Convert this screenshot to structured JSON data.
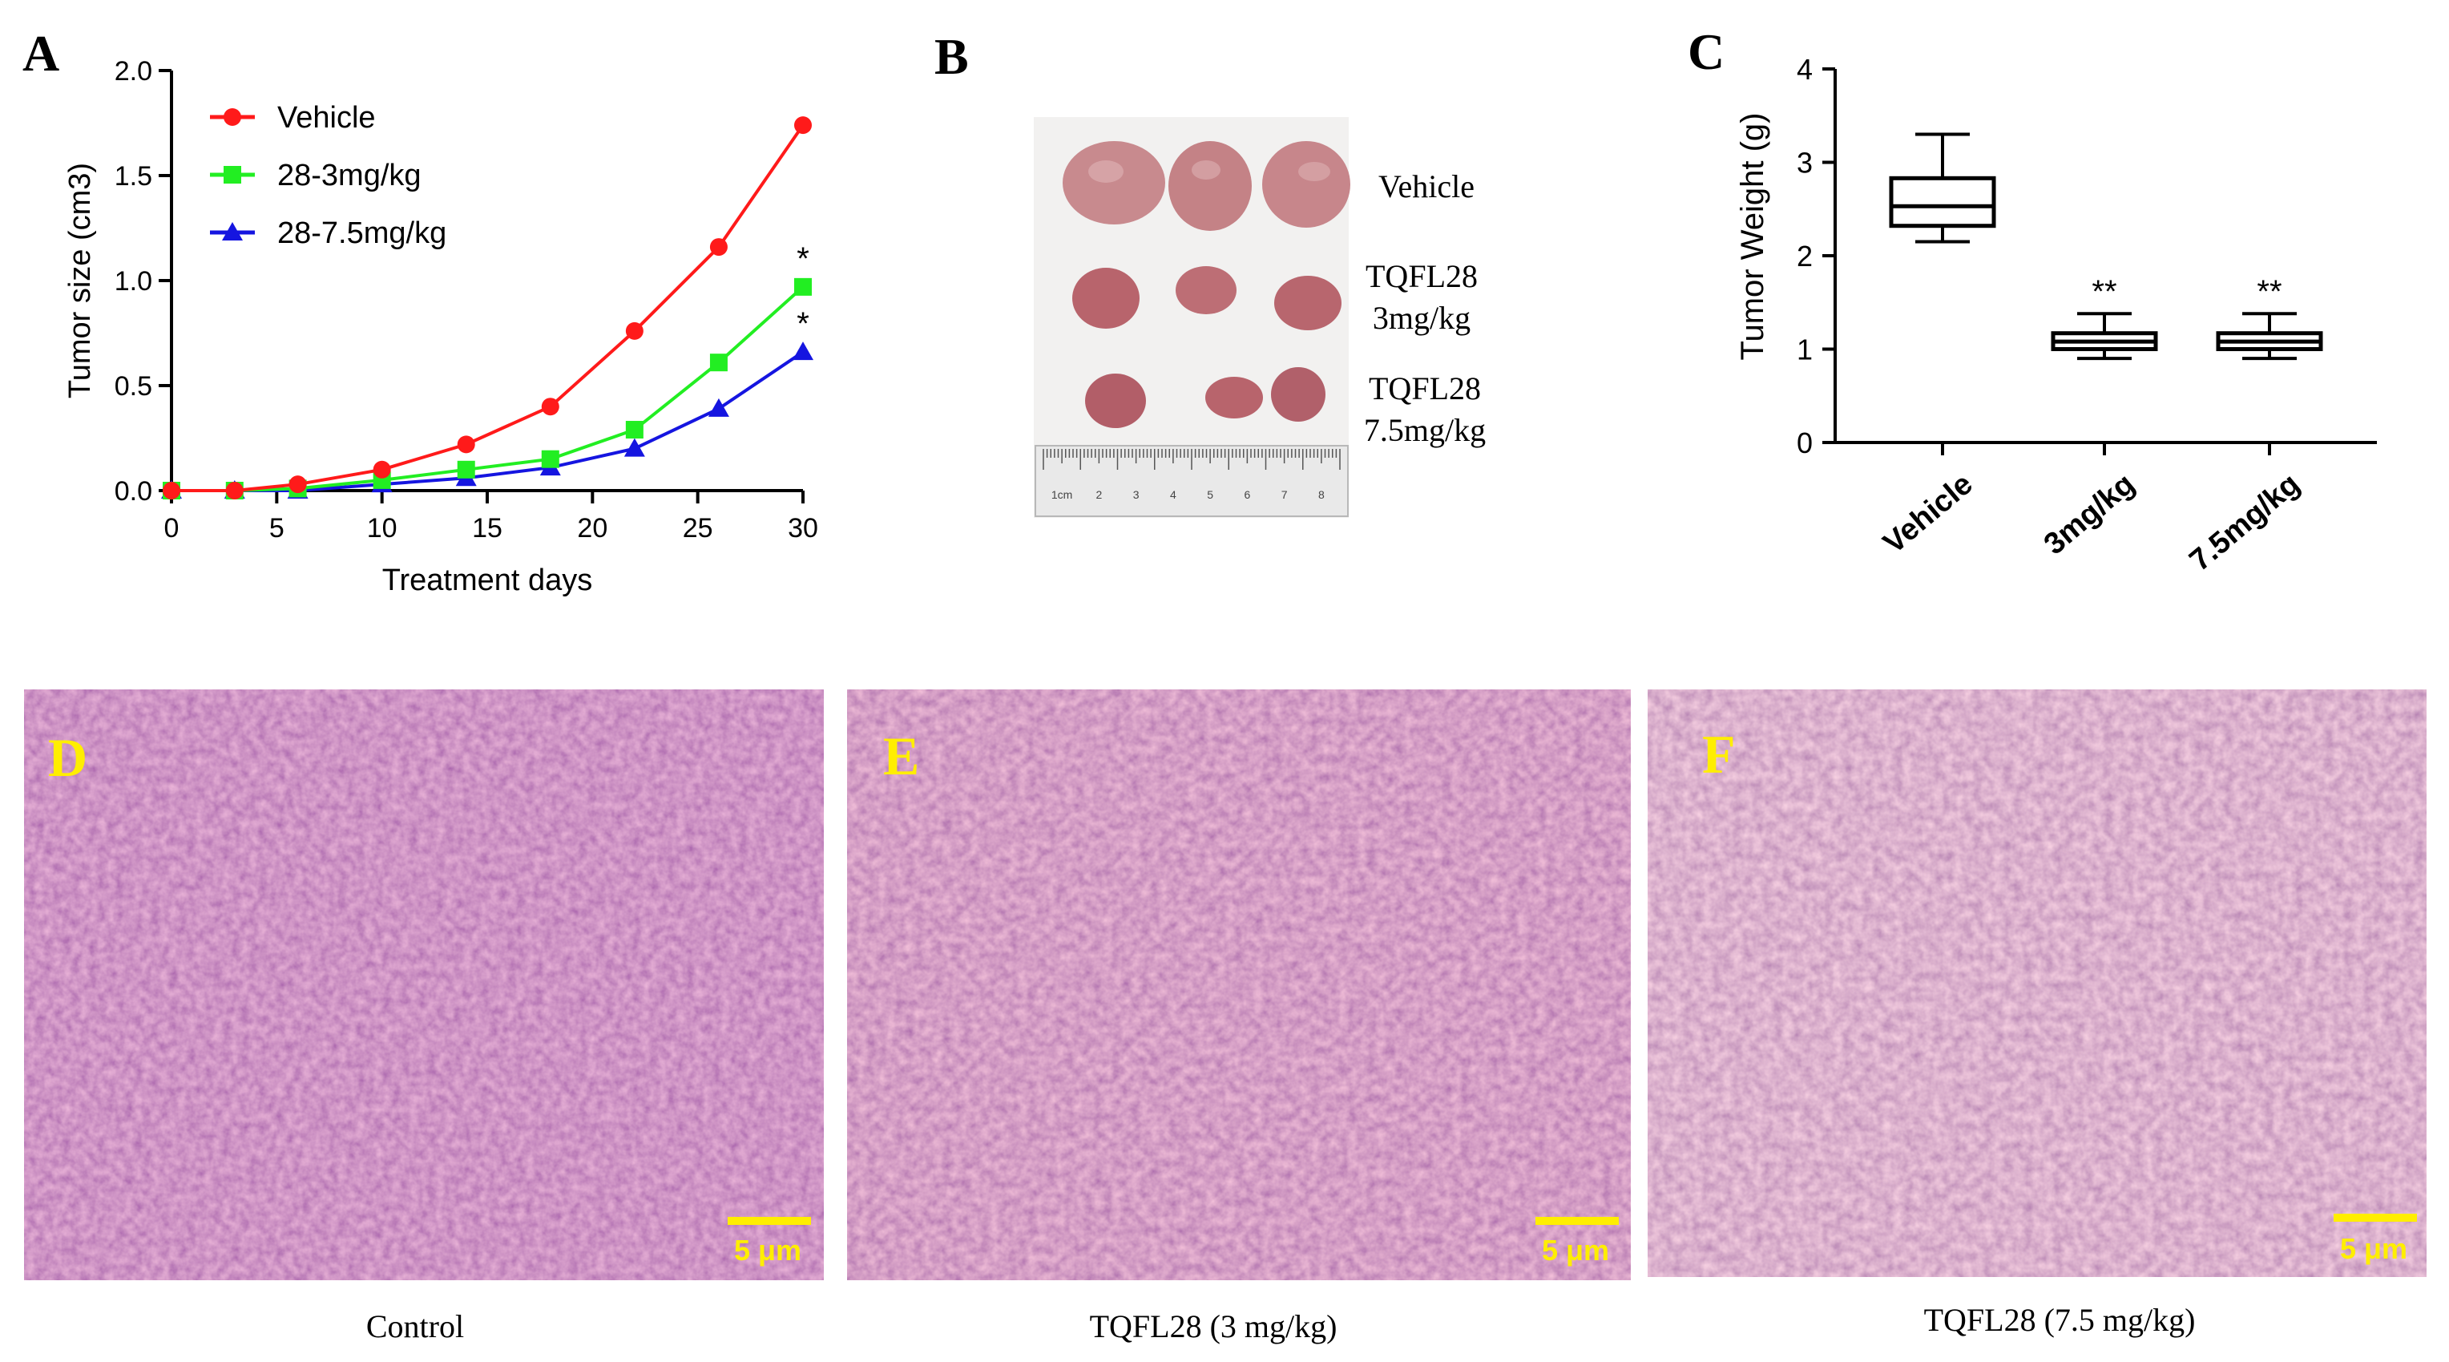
{
  "panels": {
    "A": {
      "letter": "A"
    },
    "B": {
      "letter": "B"
    },
    "C": {
      "letter": "C"
    },
    "D": {
      "letter": "D"
    },
    "E": {
      "letter": "E"
    },
    "F": {
      "letter": "F"
    }
  },
  "colors": {
    "vehicle": "#ff1a1a",
    "dose3": "#22ee22",
    "dose75": "#1515e0",
    "label_yellow": "#ffee00",
    "he_base": "#b05aa8",
    "he_dark": "#5a2578",
    "he_light": "#e8c8d8"
  },
  "chart_data": [
    {
      "type": "line",
      "xlabel": "Treatment days",
      "ylabel": "Tumor size (cm3)",
      "xlim": [
        0,
        30
      ],
      "ylim": [
        0,
        2.0
      ],
      "xticks": [
        "0",
        "5",
        "10",
        "15",
        "20",
        "25",
        "30"
      ],
      "yticks": [
        "0.0",
        "0.5",
        "1.0",
        "1.5",
        "2.0"
      ],
      "legend_position": "top-left",
      "x": [
        0,
        3,
        6,
        10,
        14,
        18,
        22,
        26,
        30
      ],
      "series": [
        {
          "name": "Vehicle",
          "color": "#ff1a1a",
          "marker": "circle",
          "values": [
            0.0,
            0.0,
            0.03,
            0.1,
            0.22,
            0.4,
            0.76,
            1.16,
            1.74
          ]
        },
        {
          "name": "28-3mg/kg",
          "color": "#22ee22",
          "marker": "square",
          "values": [
            0.0,
            0.0,
            0.01,
            0.05,
            0.1,
            0.15,
            0.29,
            0.61,
            0.97
          ]
        },
        {
          "name": "28-7.5mg/kg",
          "color": "#1515e0",
          "marker": "triangle",
          "values": [
            0.0,
            0.0,
            0.0,
            0.03,
            0.06,
            0.11,
            0.2,
            0.39,
            0.66
          ]
        }
      ],
      "annotations": [
        {
          "text": "*",
          "x": 30,
          "series": "28-3mg/kg"
        },
        {
          "text": "*",
          "x": 30,
          "series": "28-7.5mg/kg"
        }
      ]
    },
    {
      "type": "box",
      "ylabel": "Tumor Weight (g)",
      "ylim": [
        0,
        4
      ],
      "yticks": [
        "0",
        "1",
        "2",
        "3",
        "4"
      ],
      "categories": [
        "Vehicle",
        "3mg/kg",
        "7.5mg/kg"
      ],
      "boxes": [
        {
          "min": 2.15,
          "q1": 2.32,
          "median": 2.53,
          "q3": 2.83,
          "max": 3.3,
          "annotation": ""
        },
        {
          "min": 0.9,
          "q1": 1.0,
          "median": 1.08,
          "q3": 1.17,
          "max": 1.38,
          "annotation": "**"
        },
        {
          "min": 0.9,
          "q1": 1.0,
          "median": 1.08,
          "q3": 1.17,
          "max": 1.38,
          "annotation": "**"
        }
      ]
    }
  ],
  "photo_b": {
    "labels": [
      {
        "line1": "Vehicle",
        "line2": ""
      },
      {
        "line1": "TQFL28",
        "line2": "3mg/kg"
      },
      {
        "line1": "TQFL28",
        "line2": "7.5mg/kg"
      }
    ],
    "ruler_labels": [
      "1cm",
      "2",
      "3",
      "4",
      "5",
      "6",
      "7",
      "8"
    ]
  },
  "histology": [
    {
      "letter": "D",
      "scale_label": "5 μm",
      "caption": "Control"
    },
    {
      "letter": "E",
      "scale_label": "5 μm",
      "caption": "TQFL28 (3 mg/kg)"
    },
    {
      "letter": "F",
      "scale_label": "5 μm",
      "caption": "TQFL28 (7.5 mg/kg)"
    }
  ]
}
